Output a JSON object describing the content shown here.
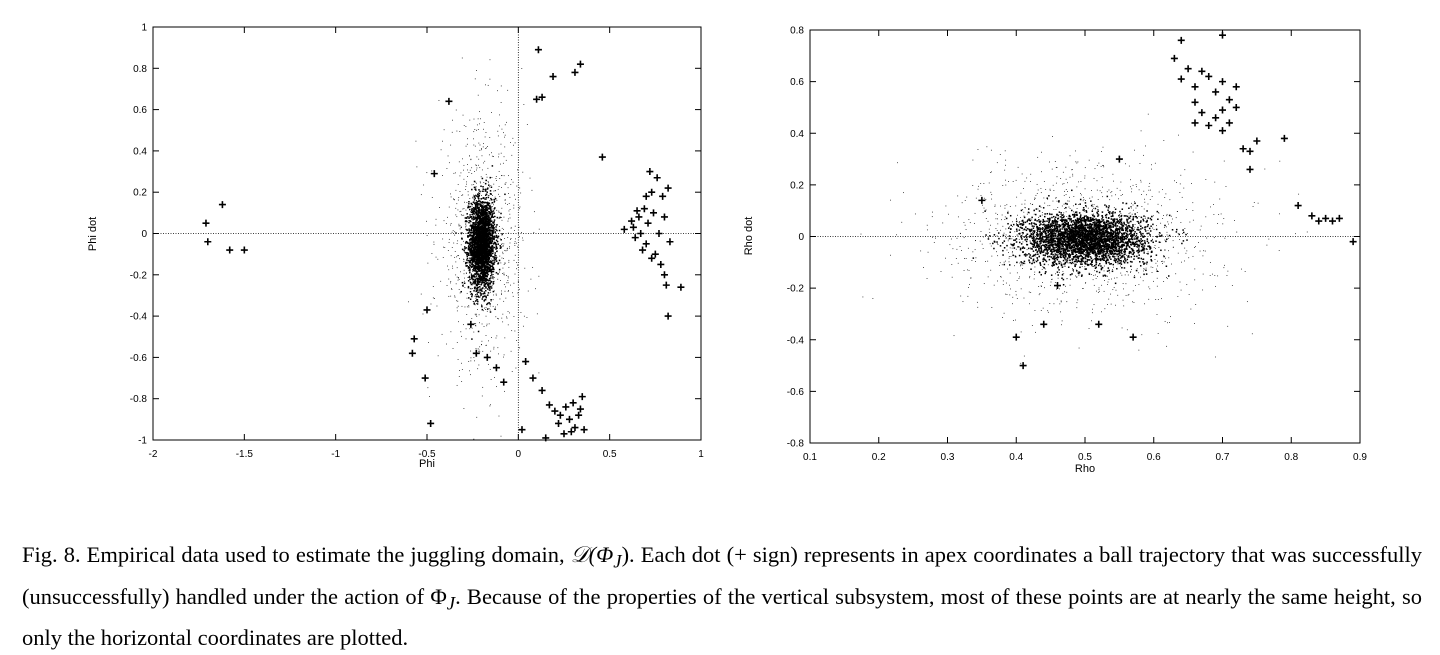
{
  "caption": {
    "label": "Fig. 8.",
    "text_1": " Empirical data used to estimate the juggling domain, ",
    "domain_symbol": "𝒟(Φ",
    "subscript": "J",
    "text_2": "). Each dot (+ sign) represents in apex coordinates a ball trajectory that was successfully (unsuccessfully) handled under the action of ",
    "phi_symbol": "Φ",
    "subscript_2": "J",
    "text_3": ". Because of the properties of the vertical subsystem, most of these points are at nearly the same height, so only the horizontal coordinates are plotted."
  },
  "chart_data": [
    {
      "type": "scatter",
      "xlabel": "Phi",
      "ylabel": "Phi dot",
      "xlim": [
        -2,
        1
      ],
      "ylim": [
        -1,
        1
      ],
      "xticks": [
        "-2",
        "-1.5",
        "-1",
        "-0.5",
        "0",
        "0.5",
        "1"
      ],
      "yticks": [
        "1",
        "0.8",
        "0.6",
        "0.4",
        "0.2",
        "0",
        "-0.2",
        "-0.4",
        "-0.6",
        "-0.8",
        "-1"
      ],
      "reference_lines": {
        "x": 0,
        "y": 0
      },
      "successful_cluster": {
        "center": [
          -0.2,
          -0.05
        ],
        "spread": [
          0.035,
          0.11
        ],
        "count": 2600
      },
      "successful_halo": {
        "center": [
          -0.2,
          -0.05
        ],
        "spread": [
          0.12,
          0.3
        ],
        "count": 900
      },
      "unsuccessful": [
        [
          -1.71,
          0.05
        ],
        [
          -1.7,
          -0.04
        ],
        [
          -1.62,
          0.14
        ],
        [
          -1.58,
          -0.08
        ],
        [
          -1.5,
          -0.08
        ],
        [
          -0.38,
          0.64
        ],
        [
          -0.46,
          0.29
        ],
        [
          0.11,
          0.89
        ],
        [
          0.19,
          0.76
        ],
        [
          0.1,
          0.65
        ],
        [
          0.13,
          0.66
        ],
        [
          0.31,
          0.78
        ],
        [
          0.34,
          0.82
        ],
        [
          0.46,
          0.37
        ],
        [
          0.58,
          0.02
        ],
        [
          0.62,
          0.06
        ],
        [
          0.64,
          -0.02
        ],
        [
          0.66,
          0.08
        ],
        [
          0.67,
          0.0
        ],
        [
          0.69,
          0.12
        ],
        [
          0.7,
          -0.05
        ],
        [
          0.71,
          0.05
        ],
        [
          0.72,
          0.3
        ],
        [
          0.73,
          0.2
        ],
        [
          0.74,
          0.1
        ],
        [
          0.75,
          -0.1
        ],
        [
          0.76,
          0.27
        ],
        [
          0.77,
          0.0
        ],
        [
          0.78,
          -0.15
        ],
        [
          0.79,
          0.18
        ],
        [
          0.8,
          0.08
        ],
        [
          0.81,
          -0.25
        ],
        [
          0.82,
          0.22
        ],
        [
          0.83,
          -0.04
        ],
        [
          0.68,
          -0.08
        ],
        [
          0.63,
          0.03
        ],
        [
          0.65,
          0.11
        ],
        [
          0.7,
          0.18
        ],
        [
          0.73,
          -0.12
        ],
        [
          0.8,
          -0.2
        ],
        [
          0.89,
          -0.26
        ],
        [
          0.82,
          -0.4
        ],
        [
          -0.5,
          -0.37
        ],
        [
          -0.57,
          -0.51
        ],
        [
          -0.58,
          -0.58
        ],
        [
          -0.51,
          -0.7
        ],
        [
          -0.48,
          -0.92
        ],
        [
          -0.26,
          -0.44
        ],
        [
          -0.23,
          -0.58
        ],
        [
          -0.17,
          -0.6
        ],
        [
          -0.12,
          -0.65
        ],
        [
          -0.08,
          -0.72
        ],
        [
          0.04,
          -0.62
        ],
        [
          0.08,
          -0.7
        ],
        [
          0.13,
          -0.76
        ],
        [
          0.02,
          -0.95
        ],
        [
          0.17,
          -0.83
        ],
        [
          0.2,
          -0.86
        ],
        [
          0.23,
          -0.88
        ],
        [
          0.26,
          -0.84
        ],
        [
          0.28,
          -0.9
        ],
        [
          0.3,
          -0.82
        ],
        [
          0.31,
          -0.94
        ],
        [
          0.33,
          -0.88
        ],
        [
          0.35,
          -0.79
        ],
        [
          0.36,
          -0.95
        ],
        [
          0.25,
          -0.97
        ],
        [
          0.22,
          -0.92
        ],
        [
          0.15,
          -0.99
        ],
        [
          0.29,
          -0.96
        ],
        [
          0.34,
          -0.85
        ]
      ]
    },
    {
      "type": "scatter",
      "xlabel": "Rho",
      "ylabel": "Rho dot",
      "xlim": [
        0.1,
        0.9
      ],
      "ylim": [
        -0.8,
        0.8
      ],
      "xticks": [
        "0.1",
        "0.2",
        "0.3",
        "0.4",
        "0.5",
        "0.6",
        "0.7",
        "0.8",
        "0.9"
      ],
      "yticks": [
        "0.8",
        "0.6",
        "0.4",
        "0.2",
        "0",
        "-0.2",
        "-0.4",
        "-0.6",
        "-0.8"
      ],
      "reference_lines": {
        "y": 0
      },
      "successful_cluster": {
        "center": [
          0.5,
          -0.01
        ],
        "spread": [
          0.045,
          0.05
        ],
        "count": 3200
      },
      "successful_halo": {
        "center": [
          0.5,
          0.0
        ],
        "spread": [
          0.1,
          0.15
        ],
        "count": 1200
      },
      "unsuccessful": [
        [
          0.64,
          0.76
        ],
        [
          0.63,
          0.69
        ],
        [
          0.65,
          0.65
        ],
        [
          0.67,
          0.64
        ],
        [
          0.64,
          0.61
        ],
        [
          0.66,
          0.58
        ],
        [
          0.68,
          0.62
        ],
        [
          0.69,
          0.56
        ],
        [
          0.7,
          0.6
        ],
        [
          0.71,
          0.53
        ],
        [
          0.72,
          0.58
        ],
        [
          0.66,
          0.52
        ],
        [
          0.67,
          0.48
        ],
        [
          0.69,
          0.46
        ],
        [
          0.7,
          0.49
        ],
        [
          0.71,
          0.44
        ],
        [
          0.66,
          0.44
        ],
        [
          0.68,
          0.43
        ],
        [
          0.7,
          0.41
        ],
        [
          0.72,
          0.5
        ],
        [
          0.73,
          0.34
        ],
        [
          0.74,
          0.33
        ],
        [
          0.75,
          0.37
        ],
        [
          0.79,
          0.38
        ],
        [
          0.7,
          0.78
        ],
        [
          0.74,
          0.26
        ],
        [
          0.81,
          0.12
        ],
        [
          0.83,
          0.08
        ],
        [
          0.84,
          0.06
        ],
        [
          0.85,
          0.07
        ],
        [
          0.86,
          0.06
        ],
        [
          0.87,
          0.07
        ],
        [
          0.89,
          -0.02
        ],
        [
          0.35,
          0.14
        ],
        [
          0.4,
          -0.39
        ],
        [
          0.41,
          -0.5
        ],
        [
          0.44,
          -0.34
        ],
        [
          0.46,
          -0.19
        ],
        [
          0.52,
          -0.34
        ],
        [
          0.57,
          -0.39
        ],
        [
          0.55,
          0.3
        ]
      ]
    }
  ]
}
